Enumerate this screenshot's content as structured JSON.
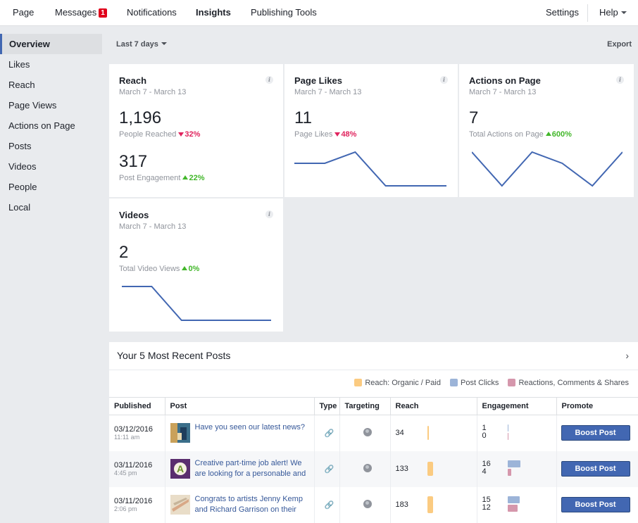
{
  "nav": {
    "page": "Page",
    "messages": "Messages",
    "messages_badge": "1",
    "notifications": "Notifications",
    "insights": "Insights",
    "publishing_tools": "Publishing Tools",
    "settings": "Settings",
    "help": "Help"
  },
  "sidebar": {
    "items": [
      {
        "label": "Overview"
      },
      {
        "label": "Likes"
      },
      {
        "label": "Reach"
      },
      {
        "label": "Page Views"
      },
      {
        "label": "Actions on Page"
      },
      {
        "label": "Posts"
      },
      {
        "label": "Videos"
      },
      {
        "label": "People"
      },
      {
        "label": "Local"
      }
    ]
  },
  "toolbar": {
    "range": "Last 7 days",
    "export": "Export"
  },
  "cards": {
    "reach": {
      "title": "Reach",
      "dates": "March 7 - March 13",
      "value1": "1,196",
      "label1": "People Reached",
      "change1": "32%",
      "value2": "317",
      "label2": "Post Engagement",
      "change2": "22%"
    },
    "likes": {
      "title": "Page Likes",
      "dates": "March 7 - March 13",
      "value": "11",
      "label": "Page Likes",
      "change": "48%",
      "trend": [
        2,
        2,
        3,
        0,
        0,
        0
      ]
    },
    "actions": {
      "title": "Actions on Page",
      "dates": "March 7 - March 13",
      "value": "7",
      "label": "Total Actions on Page",
      "change": "600%",
      "trend": [
        3,
        0,
        3,
        2,
        0,
        3
      ]
    },
    "videos": {
      "title": "Videos",
      "dates": "March 7 - March 13",
      "value": "2",
      "label": "Total Video Views",
      "change": "0%",
      "trend": [
        2,
        2,
        0,
        0,
        0,
        0
      ]
    }
  },
  "posts": {
    "title": "Your 5 Most Recent Posts",
    "legend": {
      "reach": "Reach: Organic / Paid",
      "clicks": "Post Clicks",
      "reactions": "Reactions, Comments & Shares"
    },
    "columns": {
      "published": "Published",
      "post": "Post",
      "type": "Type",
      "targeting": "Targeting",
      "reach": "Reach",
      "engagement": "Engagement",
      "promote": "Promote"
    },
    "rows": [
      {
        "date": "03/12/2016",
        "time": "11:11 am",
        "text": "Have you seen our latest news?",
        "reach": "34",
        "clicks": "1",
        "reactions": "0",
        "button": "Boost Post"
      },
      {
        "date": "03/11/2016",
        "time": "4:45 pm",
        "text": "Creative part-time job alert! We are looking for a personable and h",
        "reach": "133",
        "clicks": "16",
        "reactions": "4",
        "button": "Boost Post"
      },
      {
        "date": "03/11/2016",
        "time": "2:06 pm",
        "text": "Congrats to artists Jenny Kemp and Richard Garrison on their exhi",
        "reach": "183",
        "clicks": "15",
        "reactions": "12",
        "button": "Boost Post"
      }
    ]
  },
  "colors": {
    "accent": "#4267b2",
    "down": "#e0245e",
    "up": "#42b72a",
    "reach_bar": "#fbcb81",
    "clicks_bar": "#9cb4d8",
    "reactions_bar": "#d597ac"
  }
}
